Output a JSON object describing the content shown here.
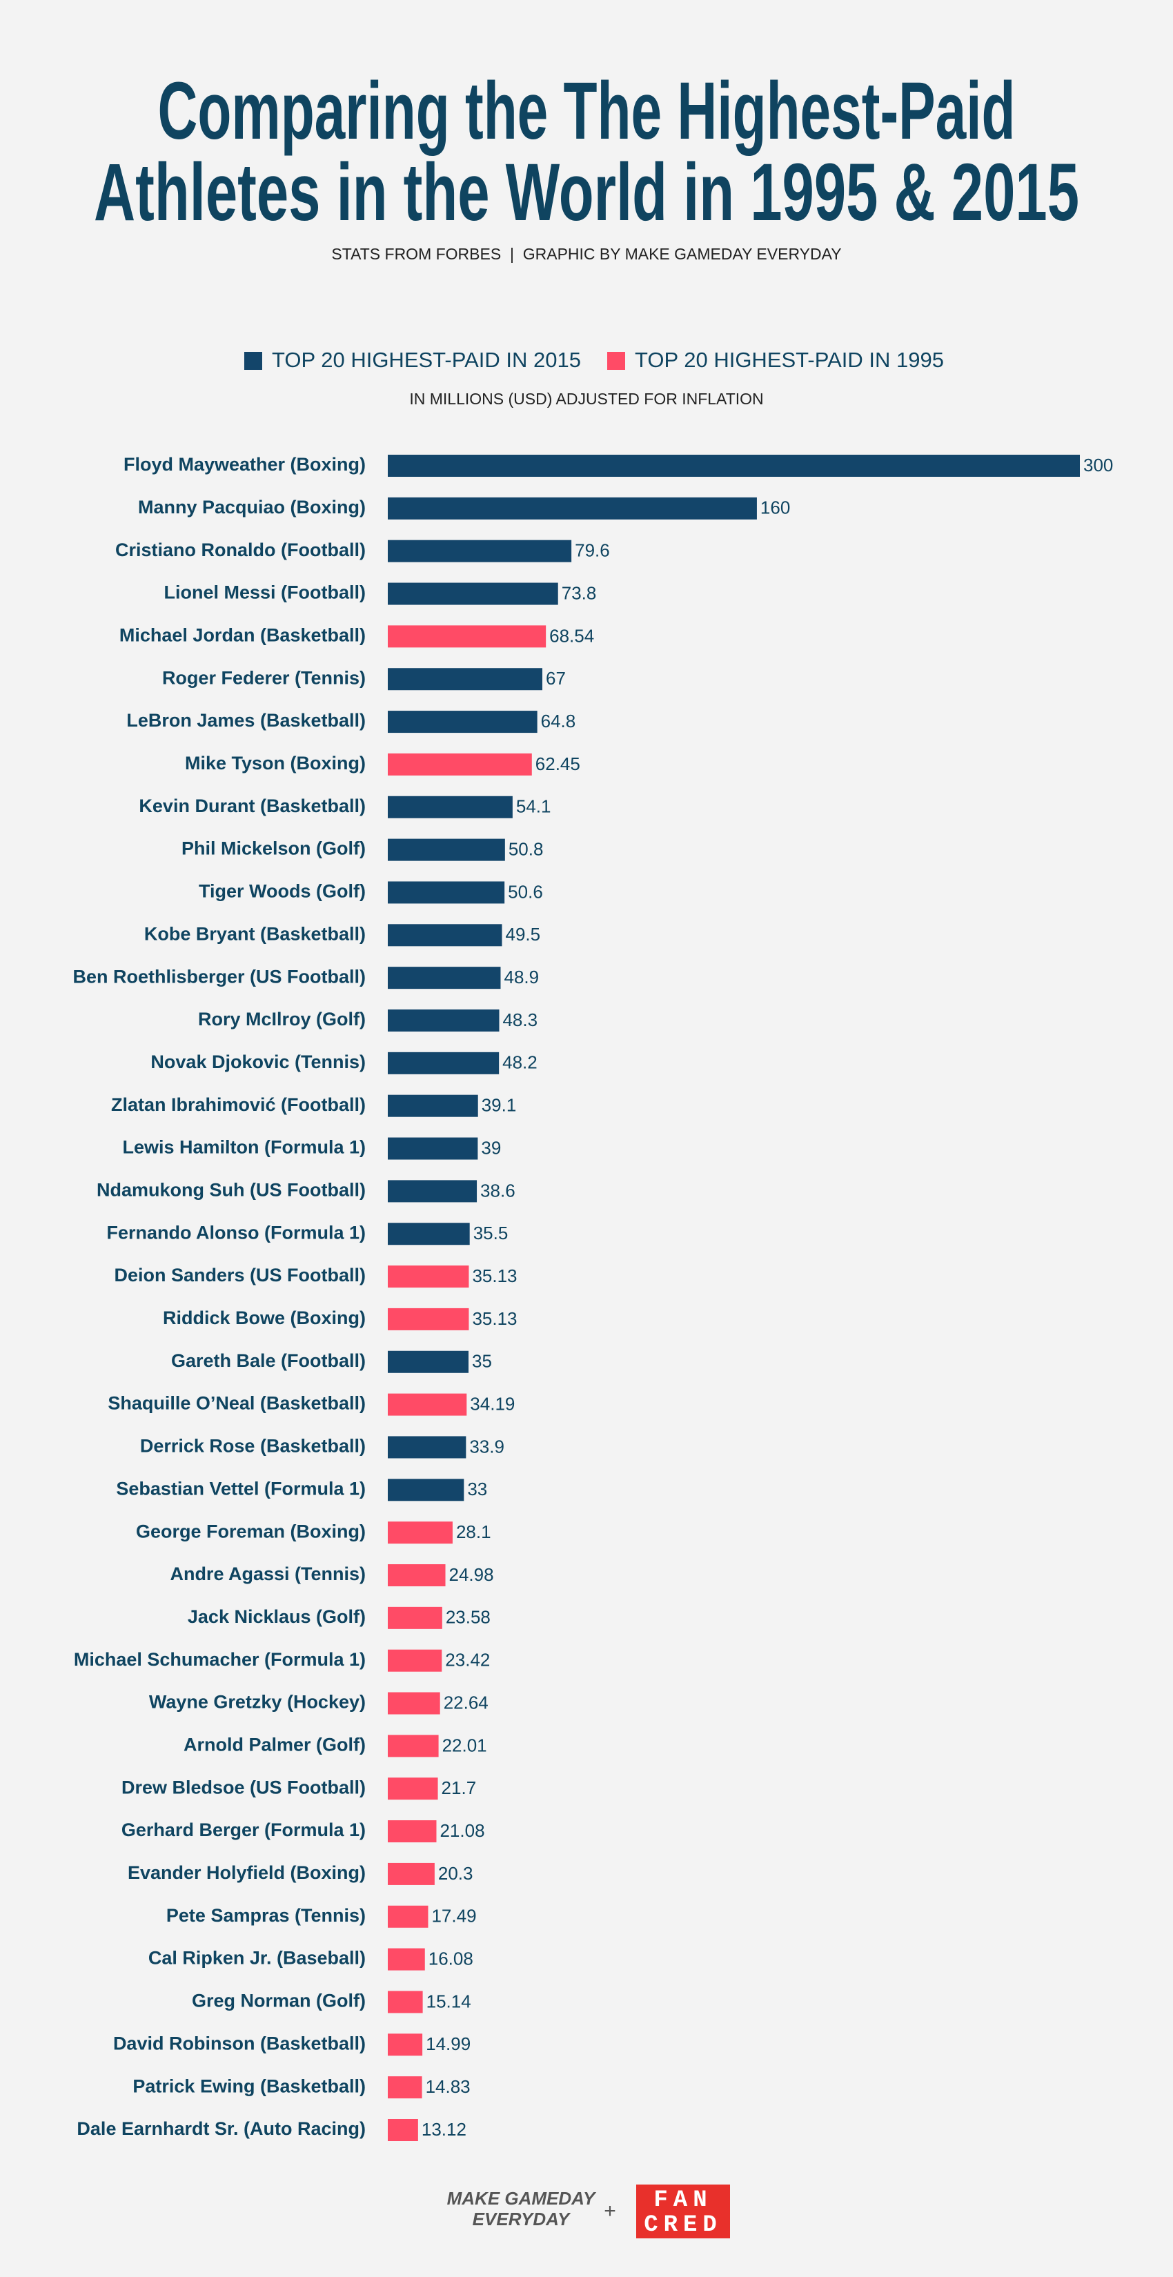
{
  "chart_data": {
    "type": "bar",
    "orientation": "horizontal",
    "title": [
      "Comparing the The Highest-Paid",
      "Athletes in the World in 1995 & 2015"
    ],
    "subtitle": "STATS FROM FORBES  |  GRAPHIC BY MAKE GAMEDAY EVERYDAY",
    "note": "IN MILLIONS (USD) ADJUSTED FOR INFLATION",
    "categories": [
      "Floyd Mayweather (Boxing)",
      "Manny Pacquiao (Boxing)",
      "Cristiano Ronaldo (Football)",
      "Lionel Messi (Football)",
      "Michael Jordan (Basketball)",
      "Roger Federer (Tennis)",
      "LeBron James (Basketball)",
      "Mike Tyson (Boxing)",
      "Kevin Durant (Basketball)",
      "Phil Mickelson (Golf)",
      "Tiger Woods (Golf)",
      "Kobe Bryant (Basketball)",
      "Ben Roethlisberger (US Football)",
      "Rory McIlroy (Golf)",
      "Novak Djokovic (Tennis)",
      "Zlatan Ibrahimović (Football)",
      "Lewis Hamilton (Formula 1)",
      "Ndamukong Suh (US Football)",
      "Fernando Alonso (Formula 1)",
      "Deion Sanders (US Football)",
      "Riddick Bowe (Boxing)",
      "Gareth Bale (Football)",
      "Shaquille O’Neal (Basketball)",
      "Derrick Rose (Basketball)",
      "Sebastian Vettel (Formula 1)",
      "George Foreman (Boxing)",
      "Andre Agassi (Tennis)",
      "Jack Nicklaus (Golf)",
      "Michael Schumacher (Formula 1)",
      "Wayne Gretzky (Hockey)",
      "Arnold Palmer (Golf)",
      "Drew Bledsoe (US Football)",
      "Gerhard Berger (Formula 1)",
      "Evander Holyfield (Boxing)",
      "Pete Sampras (Tennis)",
      "Cal Ripken Jr. (Baseball)",
      "Greg Norman (Golf)",
      "David Robinson (Basketball)",
      "Patrick Ewing (Basketball)",
      "Dale Earnhardt Sr. (Auto Racing)"
    ],
    "series": [
      {
        "name": "TOP 20 HIGHEST-PAID IN 2015",
        "color": "#13456a",
        "values": [
          300,
          160,
          79.6,
          73.8,
          null,
          67,
          64.8,
          null,
          54.1,
          50.8,
          50.6,
          49.5,
          48.9,
          48.3,
          48.2,
          39.1,
          39,
          38.6,
          35.5,
          null,
          null,
          35,
          null,
          33.9,
          33,
          null,
          null,
          null,
          null,
          null,
          null,
          null,
          null,
          null,
          null,
          null,
          null,
          null,
          null,
          null
        ]
      },
      {
        "name": "TOP 20 HIGHEST-PAID IN 1995",
        "color": "#ff4b66",
        "values": [
          null,
          null,
          null,
          null,
          68.54,
          null,
          null,
          62.45,
          null,
          null,
          null,
          null,
          null,
          null,
          null,
          null,
          null,
          null,
          null,
          35.13,
          35.13,
          null,
          34.19,
          null,
          null,
          28.1,
          24.98,
          23.58,
          23.42,
          22.64,
          22.01,
          21.7,
          21.08,
          20.3,
          17.49,
          16.08,
          15.14,
          14.99,
          14.83,
          13.12
        ]
      }
    ],
    "footer": {
      "brand": [
        "MAKE GAMEDAY",
        "EVERYDAY"
      ],
      "plus": "+",
      "logo": [
        "FAN",
        "CRED"
      ]
    }
  }
}
